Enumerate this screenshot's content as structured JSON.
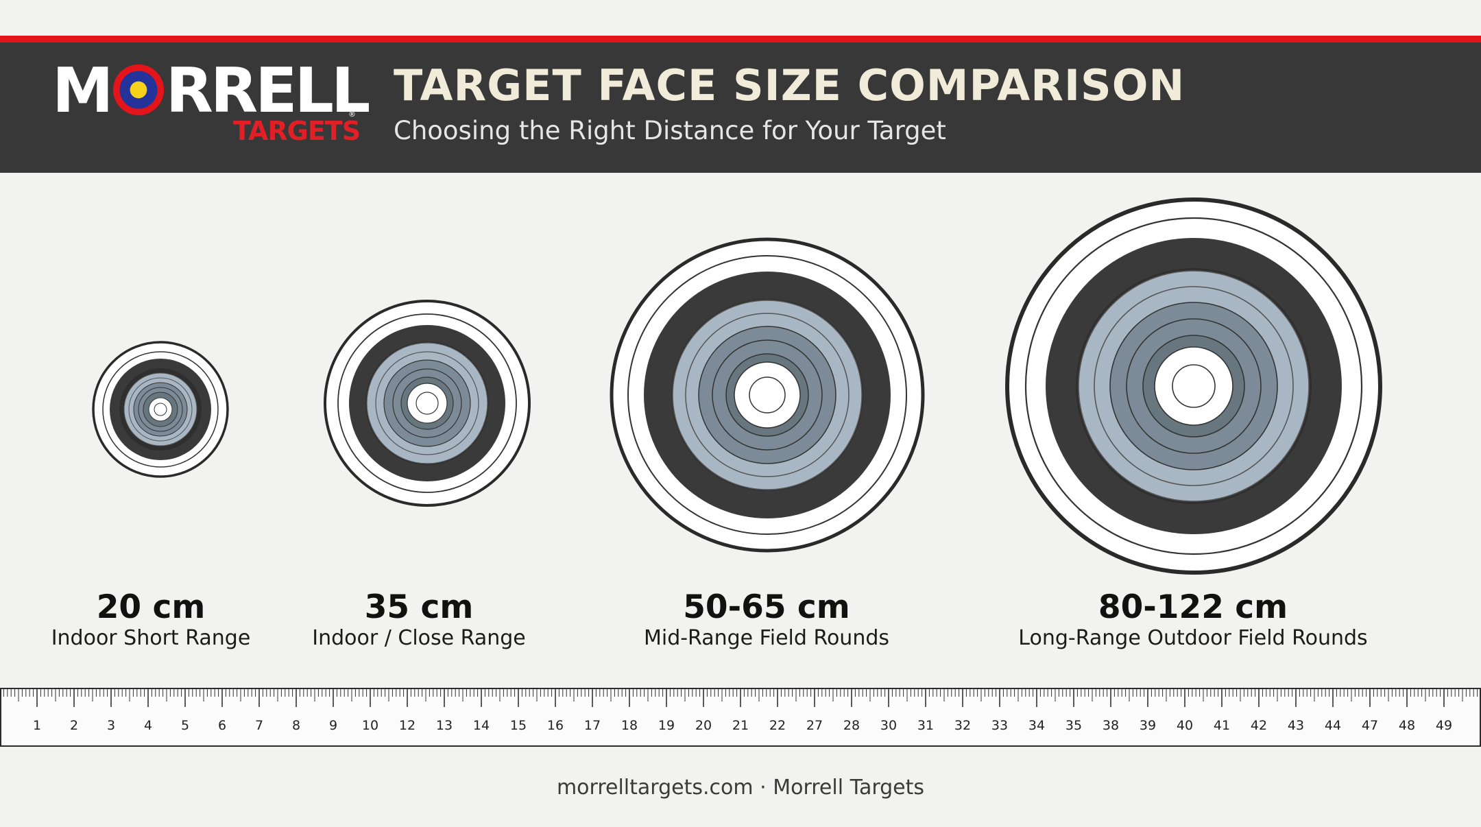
{
  "brand": {
    "wordmark_m": "M",
    "wordmark_rest": "RRELL",
    "registered": "®",
    "sub": "TARGETS",
    "colors": {
      "red": "#e3151a",
      "blue": "#24339a",
      "yellow": "#f6d21b",
      "header": "#383838"
    }
  },
  "header": {
    "title": "TARGET FACE SIZE COMPARISON",
    "subtitle": "Choosing the Right Distance for Your Target"
  },
  "targets": [
    {
      "size": "20 cm",
      "use": "Indoor Short Range"
    },
    {
      "size": "35 cm",
      "use": "Indoor / Close Range"
    },
    {
      "size": "50-65 cm",
      "use": "Mid-Range Field Rounds"
    },
    {
      "size": "80-122 cm",
      "use": "Long-Range Outdoor Field Rounds"
    }
  ],
  "ruler": {
    "labels": [
      "1",
      "2",
      "3",
      "4",
      "5",
      "6",
      "7",
      "8",
      "9",
      "10",
      "12",
      "13",
      "14",
      "15",
      "16",
      "17",
      "18",
      "19",
      "20",
      "21",
      "22",
      "27",
      "28",
      "30",
      "31",
      "32",
      "33",
      "34",
      "35",
      "38",
      "39",
      "40",
      "41",
      "42",
      "43",
      "44",
      "47",
      "48",
      "49"
    ]
  },
  "footer": "morrelltargets.com · Morrell Targets"
}
